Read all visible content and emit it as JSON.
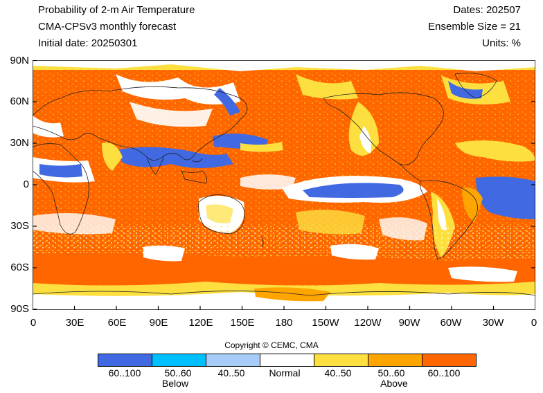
{
  "header": {
    "title": "Probability of 2-m Air Temperature",
    "model": "CMA-CPSv3 monthly forecast",
    "initial_date": "Initial date: 20250301",
    "dates": "Dates: 202507",
    "ensemble": "Ensemble Size = 21",
    "units": "Units: %"
  },
  "axes": {
    "y_ticks": [
      "90N",
      "60N",
      "30N",
      "0",
      "30S",
      "60S",
      "90S"
    ],
    "x_ticks": [
      "0",
      "30E",
      "60E",
      "90E",
      "120E",
      "150E",
      "180",
      "150W",
      "120W",
      "90W",
      "60W",
      "30W",
      "0"
    ]
  },
  "copyright": "Copyright © CEMC, CMA",
  "legend": {
    "boxes": [
      {
        "label": "60..100",
        "color": "#4169e1"
      },
      {
        "label": "50..60",
        "color": "#00bfff"
      },
      {
        "label": "40..50",
        "color": "#a7ccf7"
      },
      {
        "label": "Normal",
        "color": "#ffffff"
      },
      {
        "label": "40..50",
        "color": "#fde040"
      },
      {
        "label": "50..60",
        "color": "#ffa500"
      },
      {
        "label": "60..100",
        "color": "#ff6600"
      }
    ],
    "below_label": "Below",
    "above_label": "Above"
  }
}
